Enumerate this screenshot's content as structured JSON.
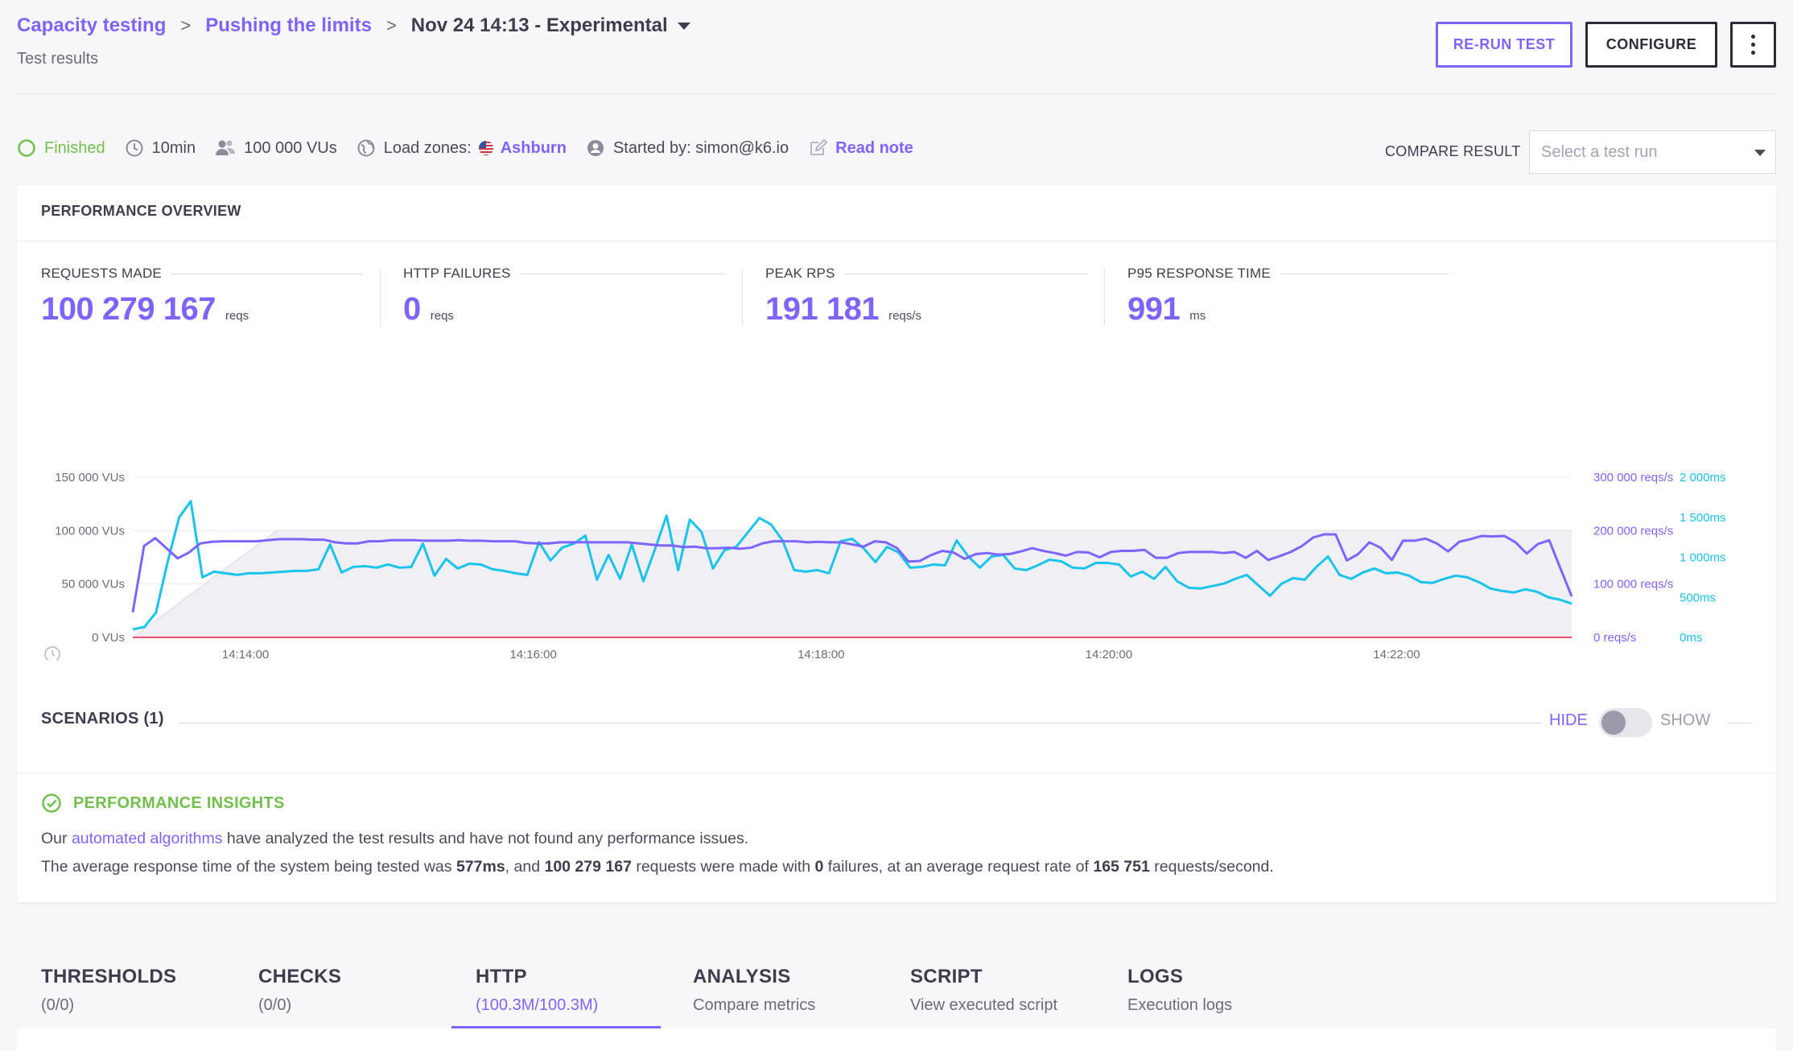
{
  "breadcrumb": {
    "items": [
      "Capacity testing",
      "Pushing the limits",
      "Nov 24 14:13 - Experimental"
    ],
    "separator": ">"
  },
  "header": {
    "subtitle": "Test results",
    "rerun_label": "RE-RUN TEST",
    "configure_label": "CONFIGURE"
  },
  "meta": {
    "status": "Finished",
    "duration": "10min",
    "vus": "100 000 VUs",
    "load_zones_label": "Load zones:",
    "load_zone": "Ashburn",
    "started_by": "Started by: simon@k6.io",
    "read_note": "Read note"
  },
  "compare": {
    "label": "COMPARE RESULT",
    "placeholder": "Select a test run"
  },
  "overview": {
    "title": "PERFORMANCE OVERVIEW",
    "stats": [
      {
        "label": "REQUESTS MADE",
        "value": "100 279 167",
        "unit": "reqs"
      },
      {
        "label": "HTTP FAILURES",
        "value": "0",
        "unit": "reqs"
      },
      {
        "label": "PEAK RPS",
        "value": "191 181",
        "unit": "reqs/s"
      },
      {
        "label": "P95 RESPONSE TIME",
        "value": "991",
        "unit": "ms"
      }
    ]
  },
  "colors": {
    "accent": "#7d64ff",
    "response_time": "#19c3eb",
    "failures": "#f0506e",
    "success": "#73bf4c"
  },
  "chart_data": {
    "type": "line",
    "x_ticks": [
      "14:14:00",
      "14:16:00",
      "14:18:00",
      "14:20:00",
      "14:22:00"
    ],
    "y_left": {
      "ticks": [
        "0 VUs",
        "50 000 VUs",
        "100 000 VUs",
        "150 000 VUs"
      ],
      "range": [
        0,
        150000
      ]
    },
    "y_right_1": {
      "ticks": [
        "0 reqs/s",
        "100 000 reqs/s",
        "200 000 reqs/s",
        "300 000 reqs/s"
      ],
      "range": [
        0,
        300000
      ]
    },
    "y_right_2": {
      "ticks": [
        "0ms",
        "500ms",
        "1 000ms",
        "1 500ms",
        "2 000ms"
      ],
      "range": [
        0,
        2000
      ]
    },
    "time_range_s": [
      0,
      600
    ],
    "series": [
      {
        "key": "vus",
        "unit": "VUs",
        "color": "#e6e6ec",
        "axis": "left",
        "points": [
          [
            0,
            0
          ],
          [
            60,
            100000
          ],
          [
            600,
            100000
          ]
        ]
      },
      {
        "key": "rps",
        "unit": "reqs/s",
        "color": "#7d64ff",
        "axis": "right_1",
        "values": [
          47000,
          171000,
          186000,
          167000,
          148000,
          159000,
          176000,
          179000,
          180000,
          180000,
          180000,
          180000,
          182000,
          184000,
          184000,
          184000,
          183000,
          183000,
          178000,
          176000,
          176000,
          180000,
          180000,
          182000,
          182000,
          182000,
          181000,
          181000,
          181000,
          182000,
          181000,
          181000,
          180000,
          180000,
          180000,
          177000,
          176000,
          176000,
          178000,
          178000,
          178000,
          178000,
          178000,
          178000,
          178000,
          176000,
          174000,
          172000,
          172000,
          169000,
          170000,
          167000,
          167000,
          168000,
          166000,
          168000,
          176000,
          180000,
          180000,
          180000,
          178000,
          179000,
          178000,
          178000,
          174000,
          170000,
          180000,
          178000,
          167000,
          142000,
          143000,
          154000,
          162000,
          159000,
          147000,
          156000,
          158000,
          155000,
          156000,
          161000,
          167000,
          162000,
          158000,
          153000,
          160000,
          159000,
          150000,
          160000,
          162000,
          162000,
          164000,
          149000,
          149000,
          158000,
          160000,
          160000,
          160000,
          158000,
          160000,
          149000,
          162000,
          145000,
          152000,
          160000,
          171000,
          187000,
          193000,
          193000,
          144000,
          156000,
          178000,
          168000,
          145000,
          181000,
          181000,
          185000,
          176000,
          161000,
          179000,
          184000,
          190000,
          189000,
          190000,
          178000,
          157000,
          175000,
          182000,
          129000,
          77000
        ]
      },
      {
        "key": "response_time",
        "unit": "ms",
        "color": "#19c3eb",
        "axis": "right_2",
        "values": [
          100,
          130,
          310,
          940,
          1500,
          1700,
          750,
          820,
          800,
          780,
          800,
          800,
          810,
          820,
          830,
          830,
          850,
          1160,
          810,
          880,
          890,
          870,
          910,
          870,
          880,
          1170,
          770,
          980,
          860,
          920,
          910,
          850,
          830,
          800,
          780,
          1190,
          960,
          1120,
          1170,
          1270,
          720,
          1030,
          730,
          1160,
          700,
          1100,
          1520,
          840,
          1470,
          1320,
          860,
          1090,
          1130,
          1310,
          1490,
          1410,
          1210,
          840,
          820,
          840,
          800,
          1200,
          1230,
          1110,
          940,
          1130,
          1060,
          870,
          880,
          910,
          900,
          1210,
          1010,
          870,
          1010,
          1030,
          860,
          840,
          900,
          970,
          950,
          870,
          860,
          930,
          930,
          910,
          760,
          820,
          730,
          880,
          700,
          620,
          610,
          640,
          670,
          730,
          780,
          650,
          520,
          670,
          740,
          720,
          880,
          1010,
          780,
          730,
          810,
          860,
          800,
          810,
          770,
          690,
          680,
          730,
          770,
          750,
          690,
          610,
          580,
          560,
          600,
          570,
          500,
          470,
          420
        ]
      },
      {
        "key": "failures",
        "unit": "reqs/s",
        "color": "#f0506e",
        "axis": "right_1",
        "points": [
          [
            0,
            0
          ],
          [
            600,
            0
          ]
        ]
      }
    ]
  },
  "scenarios": {
    "title": "SCENARIOS (1)",
    "hide_label": "HIDE",
    "show_label": "SHOW"
  },
  "insights": {
    "title": "PERFORMANCE INSIGHTS",
    "p1_pre": "Our ",
    "p1_link": "automated algorithms",
    "p1_post": " have analyzed the test results and have not found any performance issues.",
    "p2_a": "The average response time of the system being tested was ",
    "p2_b": "577ms",
    "p2_c": ", and ",
    "p2_d": "100 279 167",
    "p2_e": " requests were made with ",
    "p2_f": "0",
    "p2_g": " failures, at an average request rate of ",
    "p2_h": "165 751",
    "p2_i": " requests/second."
  },
  "tabs": [
    {
      "label": "THRESHOLDS",
      "sub": "(0/0)",
      "active": false
    },
    {
      "label": "CHECKS",
      "sub": "(0/0)",
      "active": false
    },
    {
      "label": "HTTP",
      "sub": "(100.3M/100.3M)",
      "active": true
    },
    {
      "label": "ANALYSIS",
      "sub": "Compare metrics",
      "active": false
    },
    {
      "label": "SCRIPT",
      "sub": "View executed script",
      "active": false
    },
    {
      "label": "LOGS",
      "sub": "Execution logs",
      "active": false
    }
  ]
}
